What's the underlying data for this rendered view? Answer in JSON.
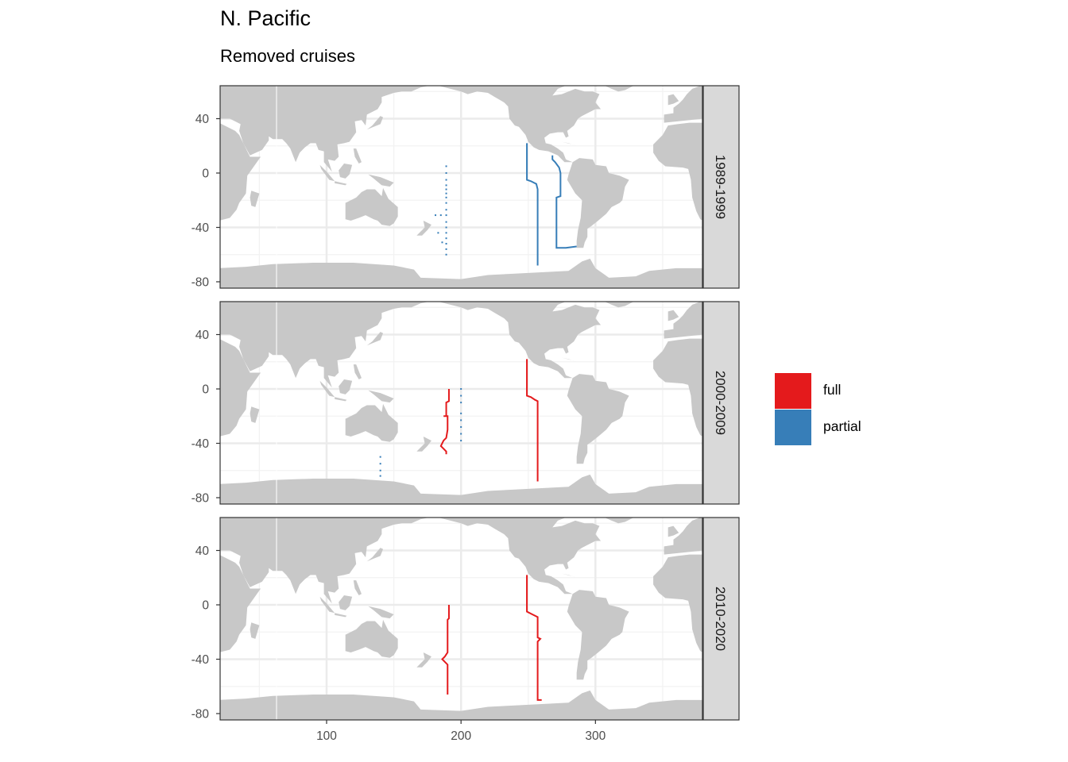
{
  "title": "N. Pacific",
  "subtitle": "Removed cruises",
  "chart_data": {
    "type": "map",
    "title": "N. Pacific",
    "subtitle": "Removed cruises",
    "xlim": [
      20,
      380
    ],
    "ylim": [
      -85,
      65
    ],
    "x_ticks": [
      100,
      200,
      300
    ],
    "y_ticks": [
      40,
      0,
      -40,
      -80
    ],
    "grid": true,
    "legend": {
      "position": "right",
      "entries": [
        {
          "label": "full",
          "color": "#e41a1c"
        },
        {
          "label": "partial",
          "color": "#377eb8"
        }
      ]
    },
    "land_color": "#c8c8c8",
    "panels": [
      {
        "label": "1989-1999",
        "tracks": [
          {
            "type": "partial",
            "style": "line",
            "points": [
              [
                249,
                22
              ],
              [
                249,
                -5
              ],
              [
                252,
                -6
              ],
              [
                256,
                -8
              ],
              [
                257,
                -12
              ],
              [
                257,
                -68
              ]
            ]
          },
          {
            "type": "partial",
            "style": "line",
            "points": [
              [
                268,
                13
              ],
              [
                268,
                10
              ],
              [
                270,
                8
              ],
              [
                273,
                4
              ],
              [
                274,
                0
              ],
              [
                274,
                -17
              ],
              [
                271,
                -18
              ],
              [
                271,
                -55
              ],
              [
                278,
                -55
              ],
              [
                286,
                -54
              ]
            ]
          },
          {
            "type": "partial",
            "style": "dots",
            "points": [
              [
                189,
                5
              ],
              [
                189,
                0
              ],
              [
                189,
                -5
              ],
              [
                189,
                -9
              ],
              [
                189,
                -12
              ],
              [
                189,
                -15
              ],
              [
                189,
                -18
              ],
              [
                189,
                -22
              ],
              [
                189,
                -27
              ],
              [
                189,
                -31
              ],
              [
                185,
                -31
              ],
              [
                181,
                -31
              ],
              [
                189,
                -36
              ],
              [
                189,
                -40
              ],
              [
                189,
                -44
              ],
              [
                189,
                -48
              ],
              [
                189,
                -52
              ],
              [
                189,
                -56
              ],
              [
                189,
                -60
              ],
              [
                183,
                -44
              ],
              [
                186,
                -51
              ]
            ]
          }
        ]
      },
      {
        "label": "2000-2009",
        "tracks": [
          {
            "type": "full",
            "style": "line",
            "points": [
              [
                249,
                22
              ],
              [
                249,
                -5
              ],
              [
                252,
                -6
              ],
              [
                255,
                -8
              ],
              [
                257,
                -9
              ],
              [
                257,
                -68
              ]
            ]
          },
          {
            "type": "full",
            "style": "line",
            "points": [
              [
                191,
                0
              ],
              [
                191,
                -9
              ],
              [
                189,
                -10
              ],
              [
                189,
                -20
              ],
              [
                187,
                -20
              ],
              [
                190,
                -20
              ],
              [
                190,
                -30
              ],
              [
                189,
                -36
              ],
              [
                187,
                -38
              ],
              [
                185,
                -42
              ],
              [
                187,
                -44
              ],
              [
                189,
                -46
              ],
              [
                189,
                -48
              ]
            ]
          },
          {
            "type": "partial",
            "style": "dots",
            "points": [
              [
                200,
                0
              ],
              [
                200,
                -5
              ],
              [
                200,
                -10
              ],
              [
                200,
                -18
              ],
              [
                200,
                -23
              ],
              [
                200,
                -28
              ],
              [
                200,
                -33
              ],
              [
                200,
                -38
              ],
              [
                140,
                -50
              ],
              [
                140,
                -55
              ],
              [
                140,
                -60
              ],
              [
                140,
                -64
              ]
            ]
          }
        ]
      },
      {
        "label": "2010-2020",
        "tracks": [
          {
            "type": "full",
            "style": "line",
            "points": [
              [
                249,
                22
              ],
              [
                249,
                -5
              ],
              [
                253,
                -7
              ],
              [
                257,
                -9
              ],
              [
                257,
                -24
              ],
              [
                259,
                -25
              ],
              [
                257,
                -27
              ],
              [
                257,
                -70
              ],
              [
                260,
                -70
              ]
            ]
          },
          {
            "type": "full",
            "style": "line",
            "points": [
              [
                191,
                0
              ],
              [
                191,
                -10
              ],
              [
                190,
                -11
              ],
              [
                190,
                -35
              ],
              [
                188,
                -38
              ],
              [
                186,
                -40
              ],
              [
                188,
                -42
              ],
              [
                190,
                -44
              ],
              [
                190,
                -66
              ]
            ]
          }
        ]
      }
    ]
  }
}
